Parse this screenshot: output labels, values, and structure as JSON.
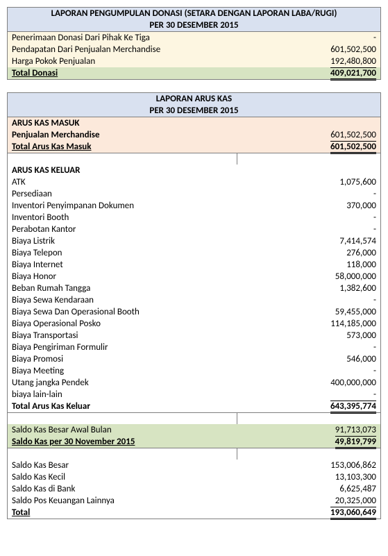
{
  "report1": {
    "title1": "LAPORAN PENGUMPULAN DONASI  (SETARA DENGAN LAPORAN LABA/RUGI)",
    "title2": "PER 30 DESEMBER 2015",
    "rows": [
      {
        "label": "Penerimaan Donasi Dari Pihak Ke Tiga",
        "value": "-"
      },
      {
        "label": "Pendapatan Dari Penjualan Merchandise",
        "value": "601,502,500"
      },
      {
        "label": "Harga Pokok Penjualan",
        "value": "192,480,800"
      }
    ],
    "total_label": "Total Donasi",
    "total_value": "409,021,700"
  },
  "report2": {
    "title1": "LAPORAN ARUS KAS",
    "title2": "PER 30 DESEMBER 2015",
    "inflow_heading": "ARUS KAS MASUK",
    "inflow_rows": [
      {
        "label": "Penjualan Merchandise",
        "value": "601,502,500"
      }
    ],
    "inflow_total_label": "Total Arus Kas Masuk",
    "inflow_total_value": "601,502,500",
    "outflow_heading": "ARUS KAS KELUAR",
    "outflow_rows": [
      {
        "label": "ATK",
        "value": "1,075,600"
      },
      {
        "label": "Persediaan",
        "value": "-"
      },
      {
        "label": "Inventori Penyimpanan Dokumen",
        "value": "370,000"
      },
      {
        "label": "Inventori Booth",
        "value": "-"
      },
      {
        "label": "Perabotan Kantor",
        "value": "-"
      },
      {
        "label": "Biaya Listrik",
        "value": "7,414,574"
      },
      {
        "label": "Biaya Telepon",
        "value": "276,000"
      },
      {
        "label": "Biaya Internet",
        "value": "118,000"
      },
      {
        "label": "Biaya Honor",
        "value": "58,000,000"
      },
      {
        "label": "Beban Rumah Tangga",
        "value": "1,382,600"
      },
      {
        "label": "Biaya Sewa Kendaraan",
        "value": "-"
      },
      {
        "label": "Biaya Sewa Dan Operasional Booth",
        "value": "59,455,000"
      },
      {
        "label": "Biaya Operasional Posko",
        "value": "114,185,000"
      },
      {
        "label": "Biaya Transportasi",
        "value": "573,000"
      },
      {
        "label": "Biaya Pengiriman Formulir",
        "value": "-"
      },
      {
        "label": "Biaya Promosi",
        "value": "546,000"
      },
      {
        "label": "Biaya Meeting",
        "value": "-"
      },
      {
        "label": "Utang jangka Pendek",
        "value": "400,000,000"
      },
      {
        "label": "biaya lain-lain",
        "value": "-"
      }
    ],
    "outflow_total_label": "Total Arus Kas Keluar",
    "outflow_total_value": "643,395,774",
    "saldo_rows": [
      {
        "label": "Saldo Kas Besar Awal Bulan",
        "value": "91,713,073"
      }
    ],
    "saldo_final_label": "Saldo Kas per 30 November 2015",
    "saldo_final_value": "49,819,799",
    "breakdown_rows": [
      {
        "label": "Saldo Kas Besar",
        "value": "153,006,862"
      },
      {
        "label": "Saldo Kas Kecil",
        "value": "13,103,300"
      },
      {
        "label": "Saldo Kas di Bank",
        "value": "6,625,487"
      },
      {
        "label": "Saldo Pos Keuangan Lainnya",
        "value": "20,325,000"
      }
    ],
    "breakdown_total_label": "Total",
    "breakdown_total_value": "193,060,649"
  },
  "colors": {
    "header_bg": "#d9e1f0",
    "yellow_bg": "#fdf6e1",
    "orange_bg": "#fce9db",
    "green_bg": "#d7e4c2",
    "border": "#7f7f7f"
  }
}
